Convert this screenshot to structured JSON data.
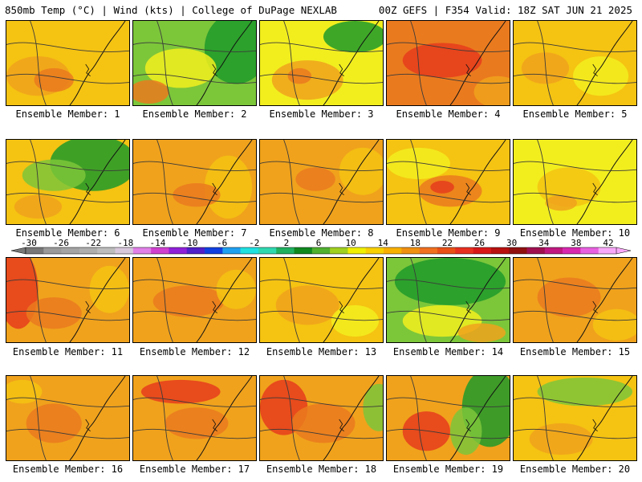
{
  "header": {
    "left": "850mb Temp (°C) | Wind (kts) | College of DuPage NEXLAB",
    "right": "00Z GEFS | F354 Valid: 18Z SAT JUN 21 2025"
  },
  "colorbar": {
    "labels": [
      "-30",
      "-26",
      "-22",
      "-18",
      "-14",
      "-10",
      "-6",
      "-2",
      "2",
      "6",
      "10",
      "14",
      "18",
      "22",
      "26",
      "30",
      "34",
      "38",
      "42"
    ],
    "colors": [
      "#787878",
      "#9a9a9a",
      "#a4a4a4",
      "#aeaeae",
      "#bdbdbd",
      "#d8c8dc",
      "#e080e8",
      "#d040d0",
      "#9020d8",
      "#5020c8",
      "#1040e0",
      "#20a0f0",
      "#20e0e0",
      "#30d8b0",
      "#20b060",
      "#108820",
      "#50b030",
      "#a0d020",
      "#f0f000",
      "#f8d000",
      "#f8b000",
      "#f09010",
      "#f07020",
      "#e85018",
      "#e83020",
      "#d81818",
      "#b81010",
      "#901010",
      "#a01050",
      "#c01880",
      "#d828b0",
      "#e860e0",
      "#f8a8f8"
    ]
  },
  "members": [
    {
      "label": "Ensemble Member: 1"
    },
    {
      "label": "Ensemble Member: 2"
    },
    {
      "label": "Ensemble Member: 3"
    },
    {
      "label": "Ensemble Member: 4"
    },
    {
      "label": "Ensemble Member: 5"
    },
    {
      "label": "Ensemble Member: 6"
    },
    {
      "label": "Ensemble Member: 7"
    },
    {
      "label": "Ensemble Member: 8"
    },
    {
      "label": "Ensemble Member: 9"
    },
    {
      "label": "Ensemble Member: 10"
    },
    {
      "label": "Ensemble Member: 11"
    },
    {
      "label": "Ensemble Member: 12"
    },
    {
      "label": "Ensemble Member: 13"
    },
    {
      "label": "Ensemble Member: 14"
    },
    {
      "label": "Ensemble Member: 15"
    },
    {
      "label": "Ensemble Member: 16"
    },
    {
      "label": "Ensemble Member: 17"
    },
    {
      "label": "Ensemble Member: 18"
    },
    {
      "label": "Ensemble Member: 19"
    },
    {
      "label": "Ensemble Member: 20"
    }
  ],
  "palette": {
    "green": "#1f9a2a",
    "light_green": "#7cc63a",
    "yellow": "#f2ee1e",
    "gold": "#f5c312",
    "orange": "#f0a21c",
    "dark_orange": "#ea7a1e",
    "red": "#e63c1c",
    "contour": "#3a3a3a"
  }
}
